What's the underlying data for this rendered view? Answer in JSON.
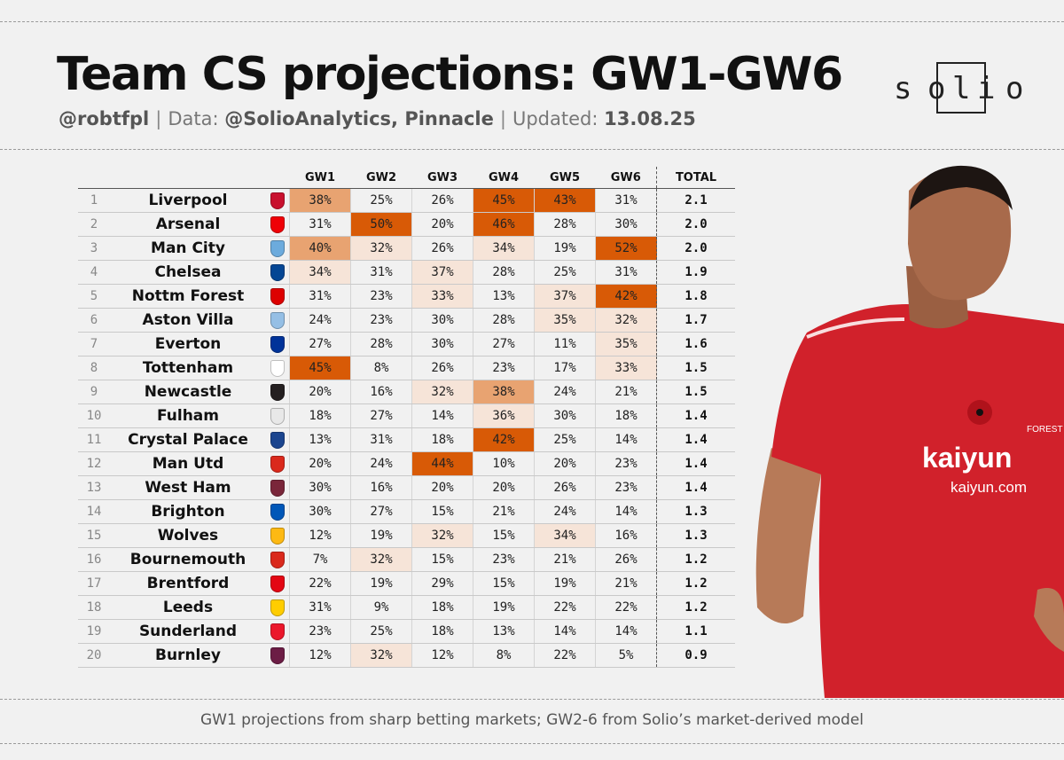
{
  "header": {
    "title": "Team CS projections: GW1-GW6",
    "author": "@robtfpl",
    "data_prefix": "Data:",
    "data_sources": "@SolioAnalytics, Pinnacle",
    "updated_prefix": "Updated:",
    "updated_date": "13.08.25",
    "separator": "|"
  },
  "logo": {
    "letters": [
      "s",
      "o",
      "l",
      "i",
      "o"
    ]
  },
  "table": {
    "columns": [
      "GW1",
      "GW2",
      "GW3",
      "GW4",
      "GW5",
      "GW6",
      "TOTAL"
    ],
    "rows": [
      {
        "rank": "1",
        "team": "Liverpool",
        "crest_color": "#c8102e",
        "cs": [
          "38%",
          "25%",
          "26%",
          "45%",
          "43%",
          "31%"
        ],
        "total": "2.1"
      },
      {
        "rank": "2",
        "team": "Arsenal",
        "crest_color": "#ef0107",
        "cs": [
          "31%",
          "50%",
          "20%",
          "46%",
          "28%",
          "30%"
        ],
        "total": "2.0"
      },
      {
        "rank": "3",
        "team": "Man City",
        "crest_color": "#6cabdd",
        "cs": [
          "40%",
          "32%",
          "26%",
          "34%",
          "19%",
          "52%"
        ],
        "total": "2.0"
      },
      {
        "rank": "4",
        "team": "Chelsea",
        "crest_color": "#034694",
        "cs": [
          "34%",
          "31%",
          "37%",
          "28%",
          "25%",
          "31%"
        ],
        "total": "1.9"
      },
      {
        "rank": "5",
        "team": "Nottm Forest",
        "crest_color": "#dd0000",
        "cs": [
          "31%",
          "23%",
          "33%",
          "13%",
          "37%",
          "42%"
        ],
        "total": "1.8"
      },
      {
        "rank": "6",
        "team": "Aston Villa",
        "crest_color": "#95bfe5",
        "cs": [
          "24%",
          "23%",
          "30%",
          "28%",
          "35%",
          "32%"
        ],
        "total": "1.7"
      },
      {
        "rank": "7",
        "team": "Everton",
        "crest_color": "#003399",
        "cs": [
          "27%",
          "28%",
          "30%",
          "27%",
          "11%",
          "35%"
        ],
        "total": "1.6"
      },
      {
        "rank": "8",
        "team": "Tottenham",
        "crest_color": "#ffffff",
        "cs": [
          "45%",
          "8%",
          "26%",
          "23%",
          "17%",
          "33%"
        ],
        "total": "1.5"
      },
      {
        "rank": "9",
        "team": "Newcastle",
        "crest_color": "#241f20",
        "cs": [
          "20%",
          "16%",
          "32%",
          "38%",
          "24%",
          "21%"
        ],
        "total": "1.5"
      },
      {
        "rank": "10",
        "team": "Fulham",
        "crest_color": "#e8e8e8",
        "cs": [
          "18%",
          "27%",
          "14%",
          "36%",
          "30%",
          "18%"
        ],
        "total": "1.4"
      },
      {
        "rank": "11",
        "team": "Crystal Palace",
        "crest_color": "#1b458f",
        "cs": [
          "13%",
          "31%",
          "18%",
          "42%",
          "25%",
          "14%"
        ],
        "total": "1.4"
      },
      {
        "rank": "12",
        "team": "Man Utd",
        "crest_color": "#da291c",
        "cs": [
          "20%",
          "24%",
          "44%",
          "10%",
          "20%",
          "23%"
        ],
        "total": "1.4"
      },
      {
        "rank": "13",
        "team": "West Ham",
        "crest_color": "#7a263a",
        "cs": [
          "30%",
          "16%",
          "20%",
          "20%",
          "26%",
          "23%"
        ],
        "total": "1.4"
      },
      {
        "rank": "14",
        "team": "Brighton",
        "crest_color": "#0057b8",
        "cs": [
          "30%",
          "27%",
          "15%",
          "21%",
          "24%",
          "14%"
        ],
        "total": "1.3"
      },
      {
        "rank": "15",
        "team": "Wolves",
        "crest_color": "#fdb913",
        "cs": [
          "12%",
          "19%",
          "32%",
          "15%",
          "34%",
          "16%"
        ],
        "total": "1.3"
      },
      {
        "rank": "16",
        "team": "Bournemouth",
        "crest_color": "#da291c",
        "cs": [
          "7%",
          "32%",
          "15%",
          "23%",
          "21%",
          "26%"
        ],
        "total": "1.2"
      },
      {
        "rank": "17",
        "team": "Brentford",
        "crest_color": "#e30613",
        "cs": [
          "22%",
          "19%",
          "29%",
          "15%",
          "19%",
          "21%"
        ],
        "total": "1.2"
      },
      {
        "rank": "18",
        "team": "Leeds",
        "crest_color": "#ffcd00",
        "cs": [
          "31%",
          "9%",
          "18%",
          "19%",
          "22%",
          "22%"
        ],
        "total": "1.2"
      },
      {
        "rank": "19",
        "team": "Sunderland",
        "crest_color": "#eb172b",
        "cs": [
          "23%",
          "25%",
          "18%",
          "13%",
          "14%",
          "14%"
        ],
        "total": "1.1"
      },
      {
        "rank": "20",
        "team": "Burnley",
        "crest_color": "#6c1d45",
        "cs": [
          "12%",
          "32%",
          "12%",
          "8%",
          "22%",
          "5%"
        ],
        "total": "0.9"
      }
    ]
  },
  "heat_colors": {
    "high": "#d85a06",
    "mid": "#e8a371",
    "low": "#f6e4d8"
  },
  "player": {
    "shirt_color": "#d1212b",
    "sponsor_text": "kaiyun",
    "sponsor_url": "kaiyun.com",
    "crest_text": "FOREST"
  },
  "footnote": "GW1 projections from sharp betting markets; GW2-6 from Solio’s market-derived model"
}
